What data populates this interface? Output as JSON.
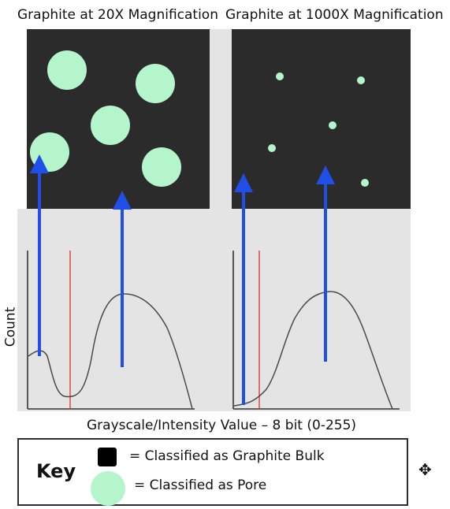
{
  "titles": {
    "left": "Graphite at 20X Magnification",
    "right": "Graphite at 1000X Magnification"
  },
  "axes": {
    "ylabel": "Count",
    "xlabel": "Grayscale/Intensity Value – 8 bit (0-255)"
  },
  "key": {
    "title": "Key",
    "bulk": "= Classified as Graphite Bulk",
    "pore": "= Classified as Pore"
  },
  "colors": {
    "background_panel": "#2b2b2b",
    "pore": "#b4f5cc",
    "arrow": "#1f4fe6",
    "threshold": "#e03a3a"
  },
  "icons": {
    "move": "move-cursor-icon"
  }
}
